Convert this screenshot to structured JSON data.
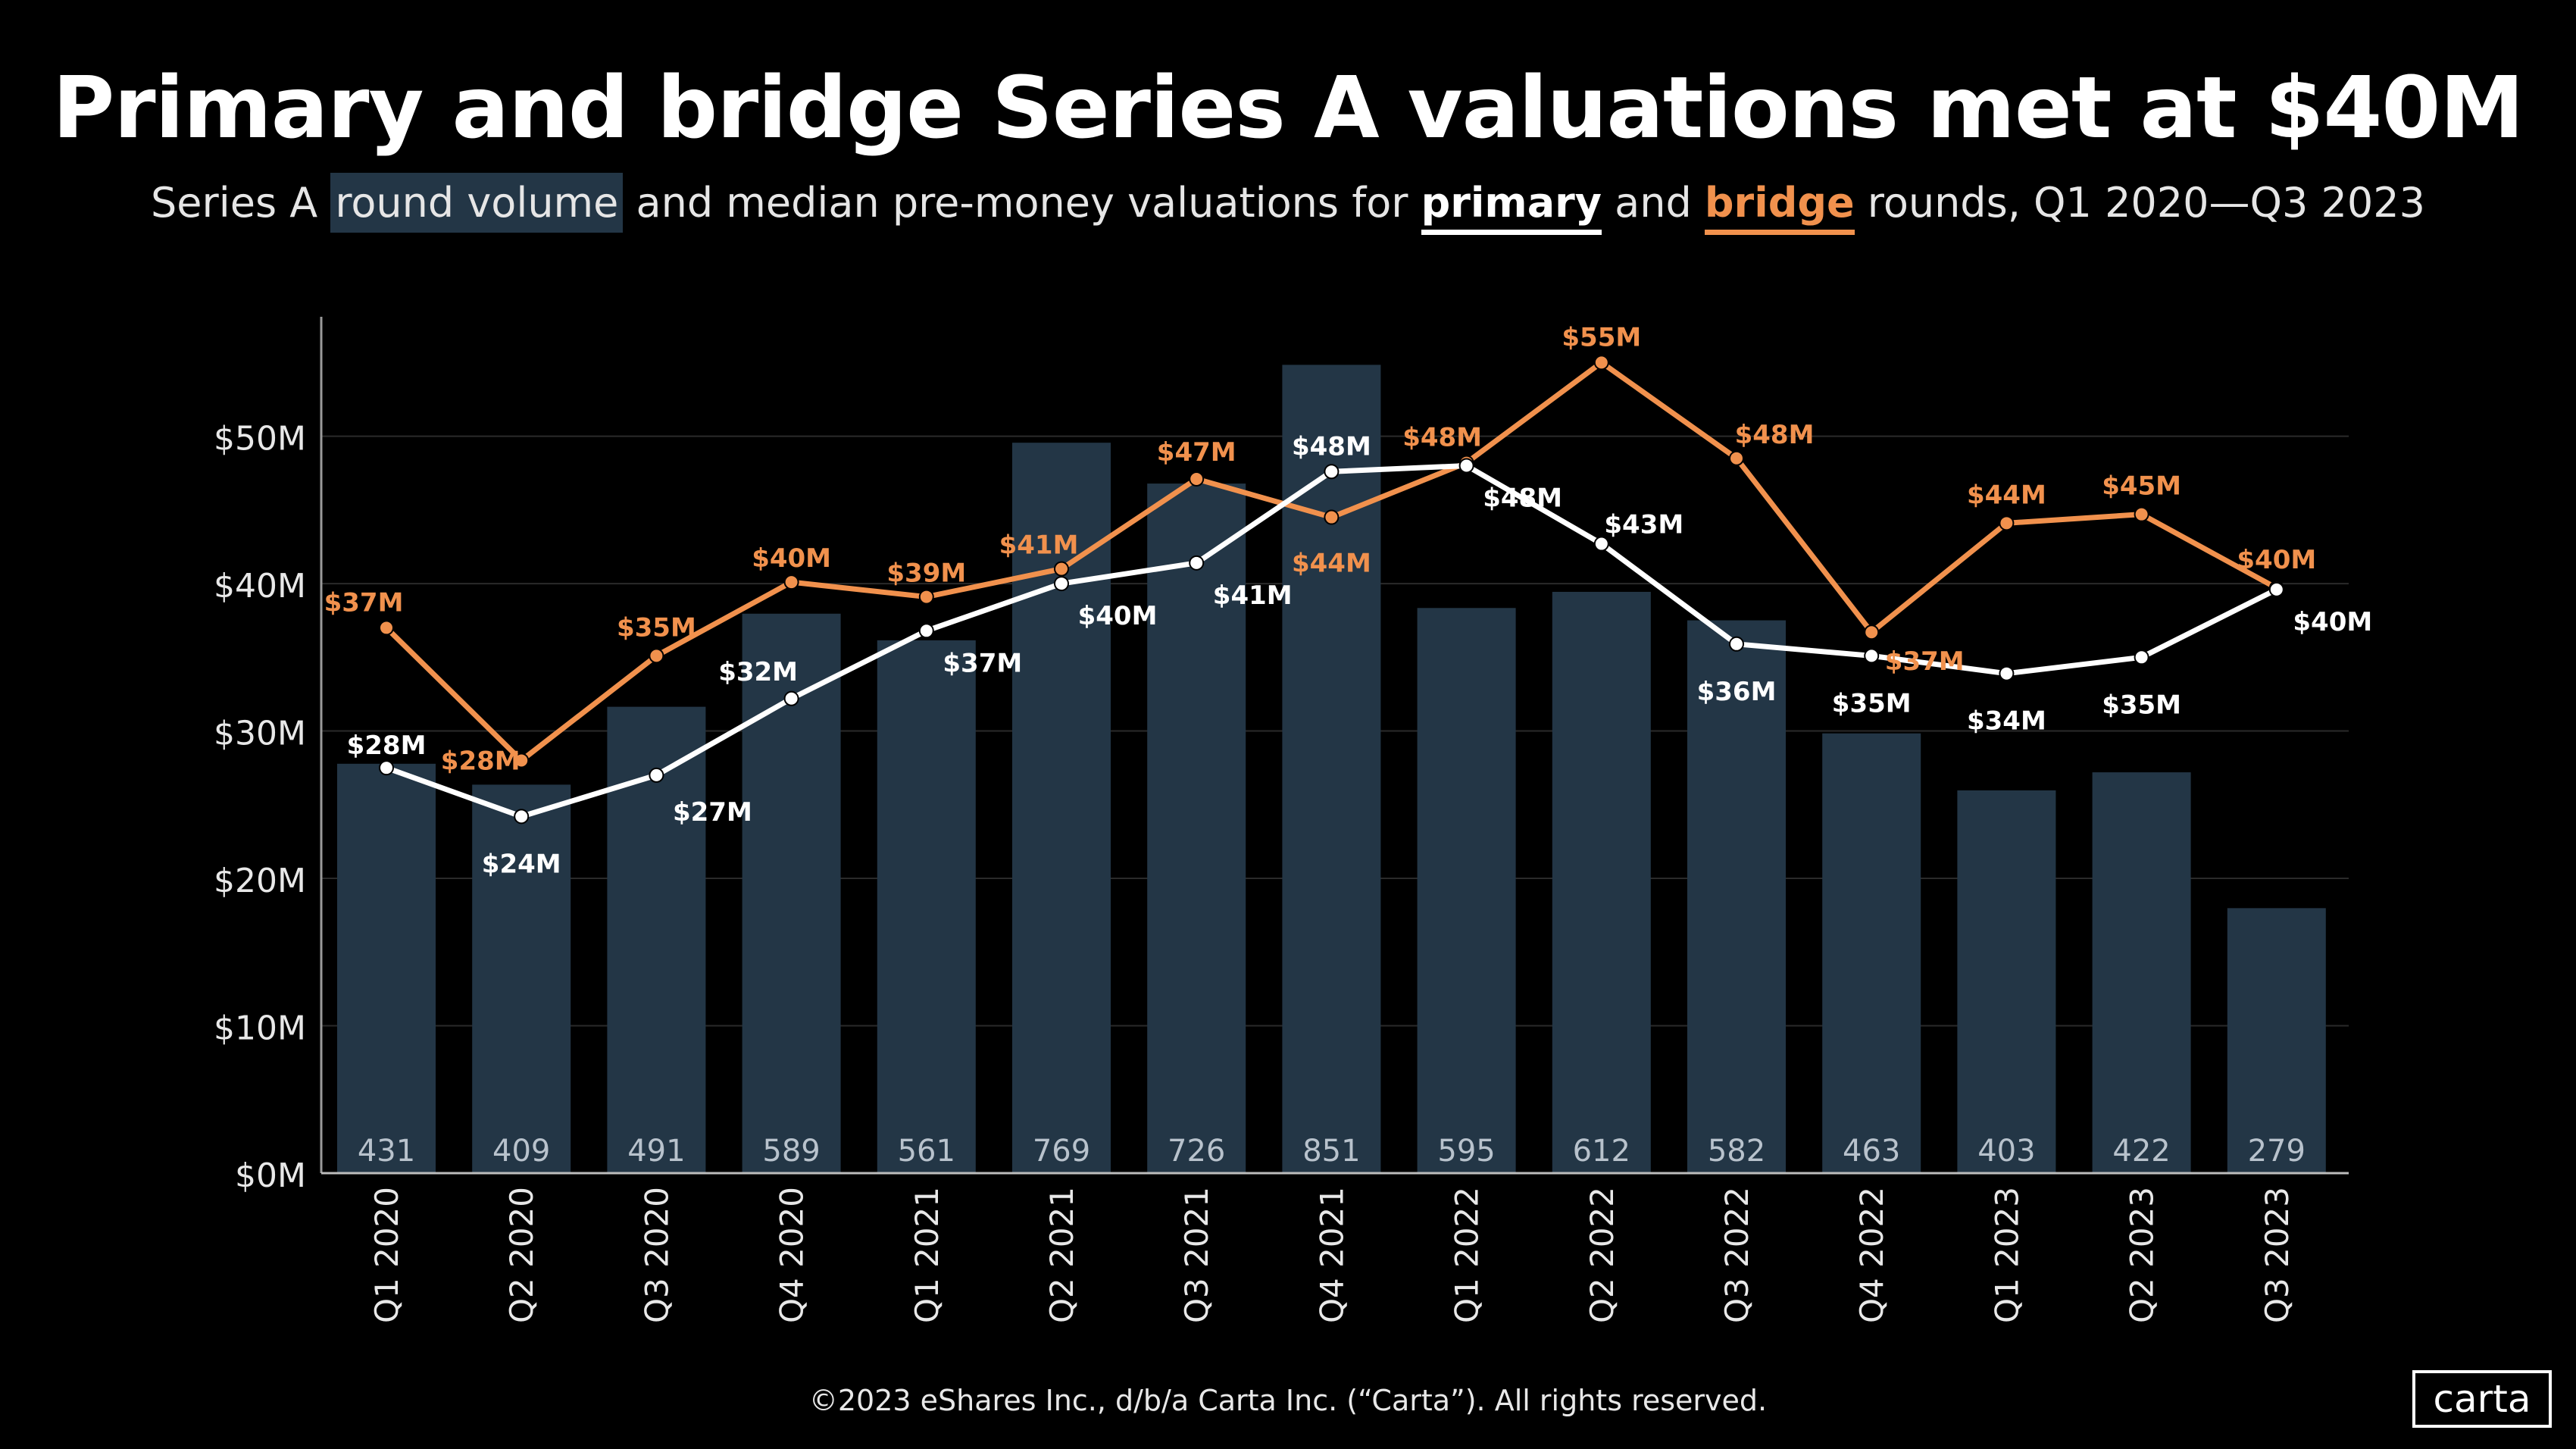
{
  "title": "Primary and bridge Series A valuations met at $40M",
  "subtitle": {
    "prefix": "Series A ",
    "volume": "round volume",
    "middle": " and median pre-money valuations for ",
    "primary": "primary",
    "and": " and ",
    "bridge": "bridge",
    "suffix": " rounds, Q1 2020—Q3 2023"
  },
  "colors": {
    "background": "#000000",
    "bar": "#233646",
    "primary": "#ffffff",
    "bridge": "#f1914d",
    "grid": "#2a2a2a",
    "count_text": "#b8c2cc"
  },
  "chart_data": {
    "type": "bar+line",
    "categories": [
      "Q1 2020",
      "Q2 2020",
      "Q3 2020",
      "Q4 2020",
      "Q1 2021",
      "Q2 2021",
      "Q3 2021",
      "Q4 2021",
      "Q1 2022",
      "Q2 2022",
      "Q3 2022",
      "Q4 2022",
      "Q1 2023",
      "Q2 2023",
      "Q3 2023"
    ],
    "bar_series": {
      "name": "round volume",
      "values": [
        431,
        409,
        491,
        589,
        561,
        769,
        726,
        851,
        595,
        612,
        582,
        463,
        403,
        422,
        279
      ]
    },
    "series": [
      {
        "name": "primary",
        "values": [
          27.5,
          24.2,
          27.0,
          32.2,
          36.8,
          40.0,
          41.4,
          47.6,
          48.0,
          42.7,
          35.9,
          35.1,
          33.9,
          35.0,
          39.6
        ],
        "labels": [
          "$28M",
          "$24M",
          "$27M",
          "$32M",
          "$37M",
          "$40M",
          "$41M",
          "$48M",
          "$48M",
          "$43M",
          "$36M",
          "$35M",
          "$34M",
          "$35M",
          "$40M"
        ]
      },
      {
        "name": "bridge",
        "values": [
          37.0,
          28.0,
          35.1,
          40.1,
          39.1,
          41.0,
          47.1,
          44.5,
          48.2,
          55.0,
          48.5,
          36.7,
          44.1,
          44.7,
          39.7
        ],
        "labels": [
          "$37M",
          "$28M",
          "$35M",
          "$40M",
          "$39M",
          "$41M",
          "$47M",
          "$44M",
          "$48M",
          "$55M",
          "$48M",
          "$37M",
          "$44M",
          "$45M",
          "$40M"
        ]
      }
    ],
    "yticks": [
      0,
      10,
      20,
      30,
      40,
      50
    ],
    "ytick_labels": [
      "$0M",
      "$10M",
      "$20M",
      "$30M",
      "$40M",
      "$50M"
    ],
    "ylim": [
      0,
      58
    ],
    "bar_ylim": [
      0,
      900
    ],
    "xlabel": "",
    "ylabel": ""
  },
  "footer": "©2023 eShares Inc., d/b/a Carta Inc. (“Carta”). All rights reserved.",
  "logo": "carta"
}
